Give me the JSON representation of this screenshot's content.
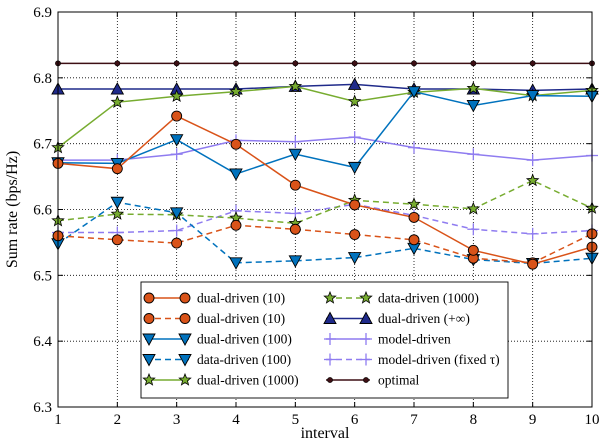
{
  "chart_data": {
    "type": "line",
    "title": "",
    "xlabel": "interval",
    "ylabel": "Sum rate (bps/Hz)",
    "xlim": [
      1,
      10
    ],
    "ylim": [
      6.3,
      6.9
    ],
    "grid": true,
    "grid_style": "dotted",
    "x_ticks": [
      "1",
      "2",
      "3",
      "4",
      "5",
      "6",
      "7",
      "8",
      "9",
      "10"
    ],
    "y_ticks": [
      "6.3",
      "6.4",
      "6.5",
      "6.6",
      "6.7",
      "6.8",
      "6.9"
    ],
    "legend_position": "lower-center",
    "x": [
      1,
      2,
      3,
      4,
      5,
      6,
      7,
      8,
      9,
      10
    ],
    "series": [
      {
        "name": "dual-driven (10)",
        "color": "#d95319",
        "line": "solid",
        "marker": "circle",
        "values": [
          6.67,
          6.662,
          6.742,
          6.699,
          6.637,
          6.607,
          6.588,
          6.538,
          6.517,
          6.543
        ]
      },
      {
        "name": "dual-driven (10)",
        "color": "#d95319",
        "line": "dashed",
        "marker": "circle",
        "values": [
          6.56,
          6.554,
          6.549,
          6.576,
          6.57,
          6.562,
          6.554,
          6.526,
          6.519,
          6.563
        ]
      },
      {
        "name": "dual-driven (100)",
        "color": "#0072bd",
        "line": "solid",
        "marker": "triangle-down",
        "values": [
          6.671,
          6.67,
          6.706,
          6.654,
          6.684,
          6.664,
          6.779,
          6.758,
          6.773,
          6.772
        ]
      },
      {
        "name": "data-driven (100)",
        "color": "#0072bd",
        "line": "dashed",
        "marker": "triangle-down",
        "values": [
          6.548,
          6.611,
          6.595,
          6.519,
          6.522,
          6.527,
          6.541,
          6.524,
          6.518,
          6.526
        ]
      },
      {
        "name": "dual-driven (1000)",
        "color": "#77ac30",
        "line": "solid",
        "marker": "star",
        "values": [
          6.694,
          6.763,
          6.772,
          6.779,
          6.787,
          6.764,
          6.778,
          6.784,
          6.773,
          6.781
        ]
      },
      {
        "name": "data-driven (1000)",
        "color": "#77ac30",
        "line": "dashed",
        "marker": "star",
        "values": [
          6.583,
          6.593,
          6.592,
          6.587,
          6.579,
          6.614,
          6.608,
          6.601,
          6.644,
          6.602
        ]
      },
      {
        "name": "dual-driven (+∞)",
        "color": "#1f2a8a",
        "line": "solid",
        "marker": "triangle-up",
        "values": [
          6.783,
          6.783,
          6.783,
          6.783,
          6.787,
          6.79,
          6.783,
          6.783,
          6.781,
          6.783
        ]
      },
      {
        "name": "model-driven",
        "color": "#8f7cf0",
        "line": "solid",
        "marker": "plus",
        "values": [
          6.675,
          6.675,
          6.684,
          6.705,
          6.703,
          6.71,
          6.694,
          6.684,
          6.675,
          6.682
        ]
      },
      {
        "name": "model-driven (fixed τ)",
        "color": "#8f7cf0",
        "line": "dashed",
        "marker": "plus",
        "values": [
          6.565,
          6.565,
          6.568,
          6.598,
          6.594,
          6.608,
          6.591,
          6.57,
          6.563,
          6.568
        ]
      },
      {
        "name": "optimal",
        "color": "#3d0f14",
        "line": "solid",
        "marker": "dot",
        "values": [
          6.822,
          6.822,
          6.822,
          6.822,
          6.822,
          6.822,
          6.822,
          6.822,
          6.822,
          6.822
        ]
      }
    ]
  }
}
